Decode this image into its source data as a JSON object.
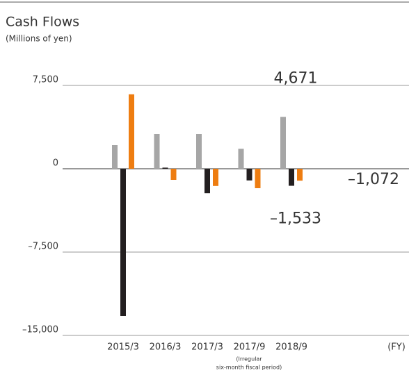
{
  "chart_data": {
    "type": "bar",
    "title": "Cash Flows",
    "subtitle": "(Millions of yen)",
    "x_label": "(FY)",
    "categories": [
      "2015/3",
      "2016/3",
      "2017/3",
      "2017/9",
      "2018/9"
    ],
    "annotation": [
      "(Irregular",
      "six-month fiscal period)"
    ],
    "series": [
      {
        "color": "#a6a6a6",
        "values": [
          2125,
          3125,
          3125,
          1800,
          4671
        ],
        "value_labels": [
          null,
          null,
          null,
          null,
          "4,671"
        ]
      },
      {
        "color": "#231f20",
        "values": [
          -13250,
          100,
          -2200,
          -1050,
          -1533
        ],
        "value_labels": [
          null,
          null,
          null,
          null,
          "–1,533"
        ]
      },
      {
        "color": "#ee7d11",
        "values": [
          6700,
          -1000,
          -1550,
          -1750,
          -1072
        ],
        "value_labels": [
          null,
          null,
          null,
          null,
          "–1,072"
        ]
      }
    ],
    "ylim": [
      -15000,
      7500
    ],
    "yticks": [
      {
        "value": -15000,
        "label": "–15,000"
      },
      {
        "value": -7500,
        "label": "–7,500"
      },
      0,
      {
        "value": 7500,
        "label": "7,500"
      }
    ],
    "grid": true
  }
}
